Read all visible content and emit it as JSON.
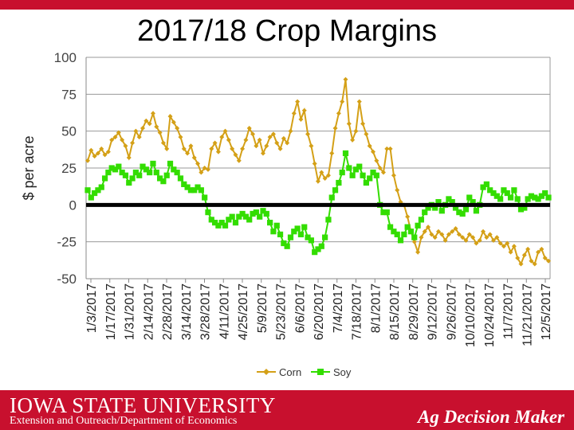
{
  "header": {
    "title": "2017/18 Crop Margins"
  },
  "footer": {
    "university": "IOWA STATE UNIVERSITY",
    "department": "Extension and Outreach/Department of Economics",
    "brand": "Ag Decision Maker"
  },
  "colors": {
    "corn": "#d4a017",
    "soy": "#33dd00",
    "zero_line": "#000000",
    "brand_red": "#c8102e"
  },
  "chart_data": {
    "type": "line",
    "title": "2017/18 Crop Margins",
    "xlabel": "",
    "ylabel": "$ per acre",
    "ylim": [
      -50,
      100
    ],
    "yticks": [
      100,
      75,
      50,
      25,
      0,
      -25,
      -50
    ],
    "grid": true,
    "legend": "bottom",
    "x_start": "1/3/2017",
    "x_end": "12/5/2017",
    "x_tick_labels": [
      "1/3/2017",
      "1/17/2017",
      "1/31/2017",
      "2/14/2017",
      "2/28/2017",
      "3/14/2017",
      "3/28/2017",
      "4/11/2017",
      "4/25/2017",
      "5/9/2017",
      "5/23/2017",
      "6/6/2017",
      "6/20/2017",
      "7/4/2017",
      "7/18/2017",
      "8/1/2017",
      "8/15/2017",
      "8/29/2017",
      "9/12/2017",
      "9/26/2017",
      "10/10/2017",
      "10/24/2017",
      "11/7/2017",
      "11/21/2017",
      "12/5/2017"
    ],
    "series": [
      {
        "name": "Corn",
        "points": [
          [
            0,
            30
          ],
          [
            1,
            37
          ],
          [
            2,
            33
          ],
          [
            3,
            35
          ],
          [
            4,
            38
          ],
          [
            5,
            34
          ],
          [
            6,
            36
          ],
          [
            7,
            44
          ],
          [
            8,
            46
          ],
          [
            9,
            49
          ],
          [
            10,
            44
          ],
          [
            11,
            40
          ],
          [
            12,
            32
          ],
          [
            13,
            42
          ],
          [
            14,
            50
          ],
          [
            15,
            46
          ],
          [
            16,
            52
          ],
          [
            17,
            57
          ],
          [
            18,
            55
          ],
          [
            19,
            62
          ],
          [
            20,
            53
          ],
          [
            21,
            49
          ],
          [
            22,
            42
          ],
          [
            23,
            38
          ],
          [
            24,
            60
          ],
          [
            25,
            56
          ],
          [
            26,
            52
          ],
          [
            27,
            46
          ],
          [
            28,
            38
          ],
          [
            29,
            35
          ],
          [
            30,
            40
          ],
          [
            31,
            32
          ],
          [
            32,
            28
          ],
          [
            33,
            22
          ],
          [
            34,
            25
          ],
          [
            35,
            24
          ],
          [
            36,
            38
          ],
          [
            37,
            42
          ],
          [
            38,
            36
          ],
          [
            39,
            46
          ],
          [
            40,
            50
          ],
          [
            41,
            44
          ],
          [
            42,
            38
          ],
          [
            43,
            34
          ],
          [
            44,
            30
          ],
          [
            45,
            38
          ],
          [
            46,
            44
          ],
          [
            47,
            52
          ],
          [
            48,
            48
          ],
          [
            49,
            40
          ],
          [
            50,
            44
          ],
          [
            51,
            35
          ],
          [
            52,
            40
          ],
          [
            53,
            46
          ],
          [
            54,
            48
          ],
          [
            55,
            42
          ],
          [
            56,
            38
          ],
          [
            57,
            45
          ],
          [
            58,
            42
          ],
          [
            59,
            50
          ],
          [
            60,
            62
          ],
          [
            61,
            70
          ],
          [
            62,
            58
          ],
          [
            63,
            64
          ],
          [
            64,
            48
          ],
          [
            65,
            40
          ],
          [
            66,
            28
          ],
          [
            67,
            16
          ],
          [
            68,
            22
          ],
          [
            69,
            18
          ],
          [
            70,
            20
          ],
          [
            71,
            35
          ],
          [
            72,
            52
          ],
          [
            73,
            62
          ],
          [
            74,
            70
          ],
          [
            75,
            85
          ],
          [
            76,
            55
          ],
          [
            77,
            44
          ],
          [
            78,
            50
          ],
          [
            79,
            70
          ],
          [
            80,
            55
          ],
          [
            81,
            48
          ],
          [
            82,
            40
          ],
          [
            83,
            36
          ],
          [
            84,
            30
          ],
          [
            85,
            25
          ],
          [
            86,
            22
          ],
          [
            87,
            38
          ],
          [
            88,
            38
          ],
          [
            89,
            20
          ],
          [
            90,
            10
          ],
          [
            91,
            2
          ],
          [
            92,
            0
          ],
          [
            93,
            -8
          ],
          [
            94,
            -18
          ],
          [
            95,
            -25
          ],
          [
            96,
            -32
          ],
          [
            97,
            -22
          ],
          [
            98,
            -18
          ],
          [
            99,
            -15
          ],
          [
            100,
            -20
          ],
          [
            101,
            -22
          ],
          [
            102,
            -18
          ],
          [
            103,
            -20
          ],
          [
            104,
            -24
          ],
          [
            105,
            -20
          ],
          [
            106,
            -18
          ],
          [
            107,
            -16
          ],
          [
            108,
            -20
          ],
          [
            109,
            -22
          ],
          [
            110,
            -24
          ],
          [
            111,
            -20
          ],
          [
            112,
            -22
          ],
          [
            113,
            -26
          ],
          [
            114,
            -24
          ],
          [
            115,
            -18
          ],
          [
            116,
            -22
          ],
          [
            117,
            -20
          ],
          [
            118,
            -24
          ],
          [
            119,
            -22
          ],
          [
            120,
            -26
          ],
          [
            121,
            -28
          ],
          [
            122,
            -26
          ],
          [
            123,
            -32
          ],
          [
            124,
            -28
          ],
          [
            125,
            -36
          ],
          [
            126,
            -40
          ],
          [
            127,
            -34
          ],
          [
            128,
            -30
          ],
          [
            129,
            -38
          ],
          [
            130,
            -40
          ],
          [
            131,
            -32
          ],
          [
            132,
            -30
          ],
          [
            133,
            -36
          ],
          [
            134,
            -38
          ]
        ]
      },
      {
        "name": "Soy",
        "points": [
          [
            0,
            10
          ],
          [
            1,
            5
          ],
          [
            2,
            8
          ],
          [
            3,
            10
          ],
          [
            4,
            12
          ],
          [
            5,
            18
          ],
          [
            6,
            22
          ],
          [
            7,
            25
          ],
          [
            8,
            24
          ],
          [
            9,
            26
          ],
          [
            10,
            22
          ],
          [
            11,
            20
          ],
          [
            12,
            15
          ],
          [
            13,
            18
          ],
          [
            14,
            22
          ],
          [
            15,
            20
          ],
          [
            16,
            26
          ],
          [
            17,
            24
          ],
          [
            18,
            22
          ],
          [
            19,
            28
          ],
          [
            20,
            22
          ],
          [
            21,
            18
          ],
          [
            22,
            16
          ],
          [
            23,
            20
          ],
          [
            24,
            28
          ],
          [
            25,
            24
          ],
          [
            26,
            22
          ],
          [
            27,
            18
          ],
          [
            28,
            14
          ],
          [
            29,
            12
          ],
          [
            30,
            10
          ],
          [
            31,
            10
          ],
          [
            32,
            12
          ],
          [
            33,
            10
          ],
          [
            34,
            5
          ],
          [
            35,
            -5
          ],
          [
            36,
            -10
          ],
          [
            37,
            -12
          ],
          [
            38,
            -14
          ],
          [
            39,
            -12
          ],
          [
            40,
            -14
          ],
          [
            41,
            -10
          ],
          [
            42,
            -8
          ],
          [
            43,
            -12
          ],
          [
            44,
            -8
          ],
          [
            45,
            -6
          ],
          [
            46,
            -8
          ],
          [
            47,
            -10
          ],
          [
            48,
            -6
          ],
          [
            49,
            -5
          ],
          [
            50,
            -8
          ],
          [
            51,
            -4
          ],
          [
            52,
            -6
          ],
          [
            53,
            -12
          ],
          [
            54,
            -18
          ],
          [
            55,
            -14
          ],
          [
            56,
            -20
          ],
          [
            57,
            -26
          ],
          [
            58,
            -28
          ],
          [
            59,
            -22
          ],
          [
            60,
            -18
          ],
          [
            61,
            -16
          ],
          [
            62,
            -20
          ],
          [
            63,
            -15
          ],
          [
            64,
            -22
          ],
          [
            65,
            -24
          ],
          [
            66,
            -32
          ],
          [
            67,
            -30
          ],
          [
            68,
            -28
          ],
          [
            69,
            -22
          ],
          [
            70,
            -10
          ],
          [
            71,
            5
          ],
          [
            72,
            10
          ],
          [
            73,
            15
          ],
          [
            74,
            22
          ],
          [
            75,
            35
          ],
          [
            76,
            25
          ],
          [
            77,
            20
          ],
          [
            78,
            24
          ],
          [
            79,
            26
          ],
          [
            80,
            20
          ],
          [
            81,
            15
          ],
          [
            82,
            18
          ],
          [
            83,
            22
          ],
          [
            84,
            20
          ],
          [
            85,
            0
          ],
          [
            86,
            -5
          ],
          [
            87,
            -5
          ],
          [
            88,
            -15
          ],
          [
            89,
            -18
          ],
          [
            90,
            -20
          ],
          [
            91,
            -24
          ],
          [
            92,
            -20
          ],
          [
            93,
            -15
          ],
          [
            94,
            -18
          ],
          [
            95,
            -22
          ],
          [
            96,
            -14
          ],
          [
            97,
            -10
          ],
          [
            98,
            -5
          ],
          [
            99,
            -2
          ],
          [
            100,
            0
          ],
          [
            101,
            -2
          ],
          [
            102,
            2
          ],
          [
            103,
            -4
          ],
          [
            104,
            0
          ],
          [
            105,
            4
          ],
          [
            106,
            2
          ],
          [
            107,
            -2
          ],
          [
            108,
            -5
          ],
          [
            109,
            -6
          ],
          [
            110,
            -3
          ],
          [
            111,
            5
          ],
          [
            112,
            2
          ],
          [
            113,
            -4
          ],
          [
            114,
            0
          ],
          [
            115,
            12
          ],
          [
            116,
            14
          ],
          [
            117,
            10
          ],
          [
            118,
            8
          ],
          [
            119,
            6
          ],
          [
            120,
            4
          ],
          [
            121,
            10
          ],
          [
            122,
            8
          ],
          [
            123,
            5
          ],
          [
            124,
            10
          ],
          [
            125,
            4
          ],
          [
            126,
            -3
          ],
          [
            127,
            -2
          ],
          [
            128,
            4
          ],
          [
            129,
            6
          ],
          [
            130,
            5
          ],
          [
            131,
            4
          ],
          [
            132,
            6
          ],
          [
            133,
            8
          ],
          [
            134,
            5
          ]
        ]
      }
    ]
  }
}
